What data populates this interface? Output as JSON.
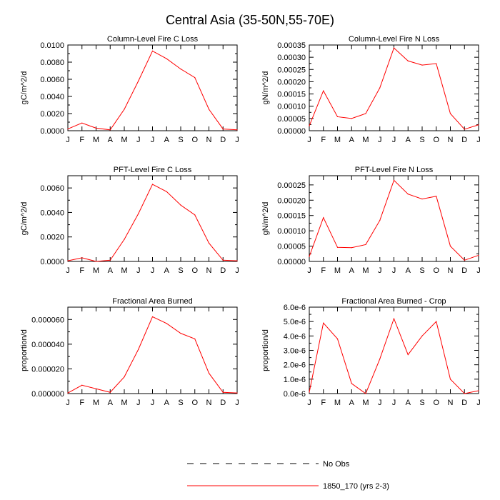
{
  "page": {
    "title": "Central Asia (35-50N,55-70E)",
    "x_tick_labels": [
      "J",
      "F",
      "M",
      "A",
      "M",
      "J",
      "J",
      "A",
      "S",
      "O",
      "N",
      "D",
      "J"
    ]
  },
  "legend": {
    "items": [
      {
        "label": "No Obs",
        "style": "dashed",
        "color": "#000000"
      },
      {
        "label": "1850_170 (yrs 2-3)",
        "style": "solid",
        "color": "#ff0000"
      }
    ]
  },
  "colors": {
    "series": "#ff0000",
    "axis": "#000000"
  },
  "chart_data": [
    {
      "type": "line",
      "title": "Column-Level Fire C Loss",
      "ylabel": "gC/m^2/d",
      "ylim": [
        0,
        0.01
      ],
      "yticks": [
        0,
        0.002,
        0.004,
        0.006,
        0.008,
        0.01
      ],
      "ytick_labels": [
        "0.0000",
        "0.0020",
        "0.0040",
        "0.0060",
        "0.0080",
        "0.0100"
      ],
      "series": [
        {
          "name": "1850_170 (yrs 2-3)",
          "values": [
            0.0002,
            0.0009,
            0.0003,
            0.0001,
            0.0025,
            0.0058,
            0.0093,
            0.0084,
            0.0072,
            0.0062,
            0.0025,
            0.0002,
            0.0001
          ]
        }
      ]
    },
    {
      "type": "line",
      "title": "Column-Level Fire N Loss",
      "ylabel": "gN/m^2/d",
      "ylim": [
        0,
        0.00035
      ],
      "yticks": [
        0,
        5e-05,
        0.0001,
        0.00015,
        0.0002,
        0.00025,
        0.0003,
        0.00035
      ],
      "ytick_labels": [
        "0.00000",
        "0.00005",
        "0.00010",
        "0.00015",
        "0.00020",
        "0.00025",
        "0.00030",
        "0.00035"
      ],
      "series": [
        {
          "name": "1850_170 (yrs 2-3)",
          "values": [
            2e-05,
            0.000163,
            5.7e-05,
            5e-05,
            7e-05,
            0.000175,
            0.000338,
            0.000285,
            0.000268,
            0.000274,
            7e-05,
            6e-06,
            2.4e-05
          ]
        }
      ]
    },
    {
      "type": "line",
      "title": "PFT-Level Fire C Loss",
      "ylabel": "gC/m^2/d",
      "ylim": [
        0,
        0.007
      ],
      "yticks": [
        0,
        0.002,
        0.004,
        0.006
      ],
      "ytick_labels": [
        "0.0000",
        "0.0020",
        "0.0040",
        "0.0060"
      ],
      "series": [
        {
          "name": "1850_170 (yrs 2-3)",
          "values": [
            5e-05,
            0.0003,
            0.0,
            0.0001,
            0.0018,
            0.0039,
            0.0063,
            0.0057,
            0.0046,
            0.0038,
            0.0015,
            0.0001,
            5e-05
          ]
        }
      ]
    },
    {
      "type": "line",
      "title": "PFT-Level Fire N Loss",
      "ylabel": "gN/m^2/d",
      "ylim": [
        0,
        0.00028
      ],
      "yticks": [
        0,
        5e-05,
        0.0001,
        0.00015,
        0.0002,
        0.00025
      ],
      "ytick_labels": [
        "0.00000",
        "0.00005",
        "0.00010",
        "0.00015",
        "0.00020",
        "0.00025"
      ],
      "series": [
        {
          "name": "1850_170 (yrs 2-3)",
          "values": [
            1.6e-05,
            0.000143,
            4.6e-05,
            4.5e-05,
            5.5e-05,
            0.000134,
            0.000265,
            0.00022,
            0.000204,
            0.000213,
            5e-05,
            4e-06,
            2e-05
          ]
        }
      ]
    },
    {
      "type": "line",
      "title": "Fractional Area Burned",
      "ylabel": "proportion/d",
      "ylim": [
        0,
        7e-05
      ],
      "yticks": [
        0,
        2e-05,
        4e-05,
        6e-05
      ],
      "ytick_labels": [
        "0.000000",
        "0.000020",
        "0.000040",
        "0.000060"
      ],
      "series": [
        {
          "name": "1850_170 (yrs 2-3)",
          "values": [
            5e-07,
            6.8e-06,
            3.9e-06,
            1e-06,
            1.35e-05,
            3.58e-05,
            6.22e-05,
            5.68e-05,
            4.88e-05,
            4.43e-05,
            1.65e-05,
            1e-06,
            5e-07
          ]
        }
      ]
    },
    {
      "type": "line",
      "title": "Fractional Area Burned - Crop",
      "ylabel": "proportion/d",
      "ylim": [
        0,
        6e-06
      ],
      "yticks": [
        0,
        1e-06,
        2e-06,
        3e-06,
        4e-06,
        5e-06,
        6e-06
      ],
      "ytick_labels": [
        "0.0e-6",
        "1.0e-6",
        "2.0e-6",
        "3.0e-6",
        "4.0e-6",
        "5.0e-6",
        "6.0e-6"
      ],
      "series": [
        {
          "name": "1850_170 (yrs 2-3)",
          "values": [
            1e-07,
            4.9e-06,
            3.8e-06,
            7e-07,
            0.0,
            2.4e-06,
            5.2e-06,
            2.7e-06,
            4e-06,
            5e-06,
            1e-06,
            0.0,
            2e-07
          ]
        }
      ]
    }
  ]
}
